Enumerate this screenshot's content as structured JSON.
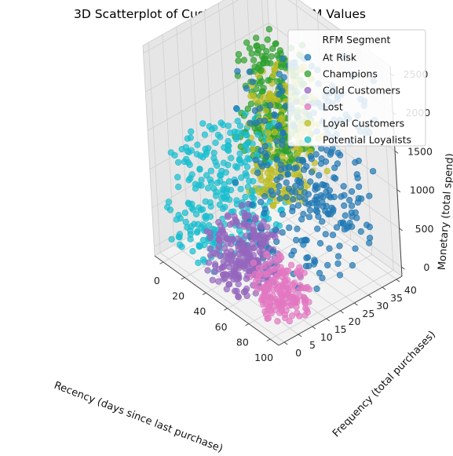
{
  "chart_data": {
    "type": "scatter",
    "projection": "3d",
    "title": "3D Scatterplot of Customers — Raw RFM Values",
    "xlabel": "Recency (days since last purchase)",
    "ylabel": "Frequency (total purchases)",
    "zlabel": "Monetary (total spend)",
    "xlim": [
      -8,
      108
    ],
    "ylim": [
      -2,
      42
    ],
    "zlim": [
      -120,
      2600
    ],
    "xticks": [
      0,
      20,
      40,
      60,
      80,
      100
    ],
    "yticks": [
      0,
      5,
      10,
      15,
      20,
      25,
      30,
      35,
      40
    ],
    "zticks": [
      0,
      500,
      1000,
      1500,
      2000,
      2500
    ],
    "grid": true,
    "legend": {
      "title": "RFM Segment",
      "position": "top-right"
    },
    "series": [
      {
        "name": "At Risk",
        "color": "#1f77b4",
        "x_range": [
          40,
          105
        ],
        "y_range": [
          10,
          40
        ],
        "z_range": [
          200,
          2500
        ],
        "count": 300
      },
      {
        "name": "Champions",
        "color": "#2ca02c",
        "x_range": [
          0,
          40
        ],
        "y_range": [
          25,
          40
        ],
        "z_range": [
          800,
          2200
        ],
        "count": 240
      },
      {
        "name": "Cold Customers",
        "color": "#9467bd",
        "x_range": [
          35,
          70
        ],
        "y_range": [
          0,
          15
        ],
        "z_range": [
          0,
          700
        ],
        "count": 260
      },
      {
        "name": "Lost",
        "color": "#e377c2",
        "x_range": [
          70,
          105
        ],
        "y_range": [
          0,
          12
        ],
        "z_range": [
          0,
          500
        ],
        "count": 170
      },
      {
        "name": "Loyal Customers",
        "color": "#bcbd22",
        "x_range": [
          20,
          50
        ],
        "y_range": [
          20,
          40
        ],
        "z_range": [
          500,
          2000
        ],
        "count": 200
      },
      {
        "name": "Potential Loyalists",
        "color": "#17becf",
        "x_range": [
          0,
          35
        ],
        "y_range": [
          0,
          30
        ],
        "z_range": [
          0,
          1500
        ],
        "count": 280
      }
    ]
  }
}
